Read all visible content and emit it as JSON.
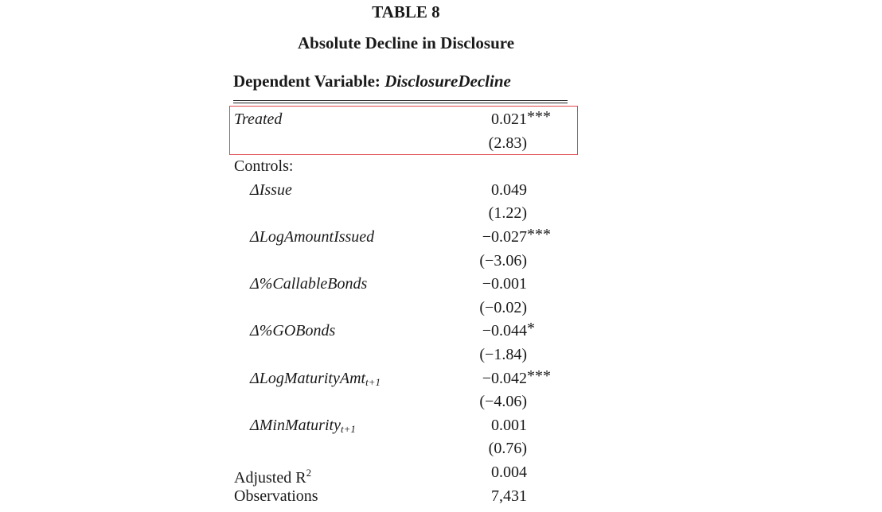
{
  "table": {
    "number": "TABLE 8",
    "title": "Absolute Decline in Disclosure",
    "dependent_label": "Dependent Variable:",
    "dependent_variable": "DisclosureDecline",
    "highlight_color": "#e0474c",
    "rows": [
      {
        "label": "Treated",
        "italic": true,
        "indent": false,
        "value": "0.021",
        "stars": "***"
      },
      {
        "label": "",
        "value": "(2.83)"
      },
      {
        "label": "Controls:",
        "italic": false,
        "indent": false,
        "value": ""
      },
      {
        "label": "ΔIssue",
        "italic": true,
        "indent": true,
        "value": "0.049"
      },
      {
        "label": "",
        "value": "(1.22)"
      },
      {
        "label": "ΔLogAmountIssued",
        "italic": true,
        "indent": true,
        "value": "−0.027",
        "stars": "***"
      },
      {
        "label": "",
        "value": "(−3.06)"
      },
      {
        "label": "Δ%CallableBonds",
        "italic": true,
        "indent": true,
        "value": "−0.001"
      },
      {
        "label": "",
        "value": "(−0.02)"
      },
      {
        "label": "Δ%GOBonds",
        "italic": true,
        "indent": true,
        "value": "−0.044",
        "stars": "*"
      },
      {
        "label": "",
        "value": "(−1.84)"
      },
      {
        "label": "ΔLogMaturityAmt",
        "sub": "t+1",
        "italic": true,
        "indent": true,
        "value": "−0.042",
        "stars": "***"
      },
      {
        "label": "",
        "value": "(−4.06)"
      },
      {
        "label": "ΔMinMaturity",
        "sub": "t+1",
        "italic": true,
        "indent": true,
        "value": "0.001"
      },
      {
        "label": "",
        "value": "(0.76)"
      },
      {
        "label": "Adjusted R",
        "sup": "2",
        "italic": false,
        "indent": false,
        "value": "0.004"
      },
      {
        "label": "Observations",
        "italic": false,
        "indent": false,
        "value": "7,431"
      }
    ]
  }
}
